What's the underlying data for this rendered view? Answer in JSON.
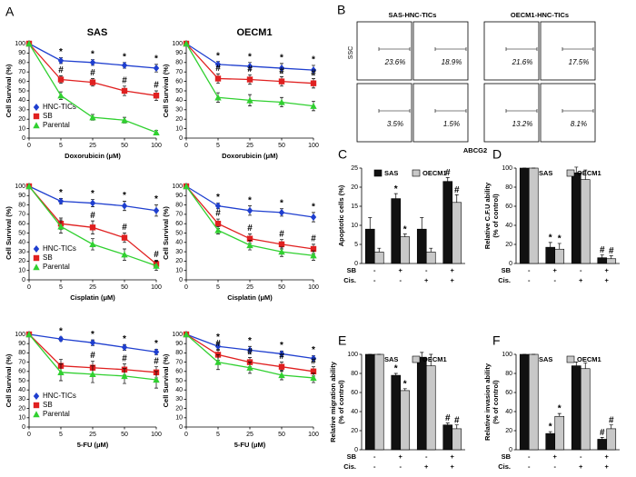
{
  "chart_data": [
    {
      "type": "line",
      "panel": "A",
      "title": "SAS",
      "xlabel": "Doxorubicin (μM)",
      "ylabel": "Cell Survival (%)",
      "categories": [
        "0",
        "5",
        "25",
        "50",
        "100"
      ],
      "ylim": [
        0,
        100
      ],
      "yticks": [
        0,
        10,
        20,
        30,
        40,
        50,
        60,
        70,
        80,
        90,
        100
      ],
      "legend": "lower left",
      "series": [
        {
          "name": "HNC-TICs",
          "color": "#1f3fcf",
          "marker": "diamond",
          "values": [
            100,
            82,
            80,
            77,
            74
          ],
          "errors": [
            0,
            3,
            3,
            3,
            4
          ],
          "marks": [
            null,
            "*",
            "*",
            "*",
            "*"
          ]
        },
        {
          "name": "SB",
          "color": "#e02020",
          "marker": "square",
          "values": [
            100,
            62,
            59,
            50,
            45
          ],
          "errors": [
            0,
            4,
            4,
            5,
            5
          ],
          "marks": [
            null,
            "#",
            "#",
            "#",
            "#"
          ]
        },
        {
          "name": "Parental",
          "color": "#30d030",
          "marker": "triangle",
          "values": [
            100,
            45,
            22,
            19,
            6
          ],
          "errors": [
            0,
            4,
            3,
            3,
            2
          ],
          "marks": [
            null,
            null,
            null,
            null,
            null
          ]
        }
      ]
    },
    {
      "type": "line",
      "title": "OECM1",
      "xlabel": "Doxorubicin (μM)",
      "ylabel": "Cell Survival (%)",
      "categories": [
        "0",
        "5",
        "25",
        "50",
        "100"
      ],
      "ylim": [
        0,
        100
      ],
      "yticks": [
        0,
        10,
        20,
        30,
        40,
        50,
        60,
        70,
        80,
        90,
        100
      ],
      "series": [
        {
          "color": "#1f3fcf",
          "marker": "diamond",
          "values": [
            100,
            78,
            76,
            74,
            72
          ],
          "errors": [
            0,
            3,
            4,
            5,
            5
          ],
          "marks": [
            null,
            "*",
            "*",
            "*",
            "*"
          ]
        },
        {
          "color": "#e02020",
          "marker": "square",
          "values": [
            100,
            63,
            62,
            60,
            58
          ],
          "errors": [
            0,
            5,
            5,
            5,
            5
          ],
          "marks": [
            null,
            "#",
            "#",
            "#",
            "#"
          ]
        },
        {
          "color": "#30d030",
          "marker": "triangle",
          "values": [
            100,
            43,
            40,
            38,
            34
          ],
          "errors": [
            0,
            5,
            6,
            5,
            5
          ],
          "marks": [
            null,
            null,
            null,
            null,
            null
          ]
        }
      ]
    },
    {
      "type": "line",
      "xlabel": "Cisplatin (μM)",
      "ylabel": "Cell Survival (%)",
      "categories": [
        "0",
        "5",
        "25",
        "50",
        "100"
      ],
      "ylim": [
        0,
        100
      ],
      "yticks": [
        0,
        10,
        20,
        30,
        40,
        50,
        60,
        70,
        80,
        90,
        100
      ],
      "legend": "lower left",
      "series": [
        {
          "name": "HNC-TICs",
          "color": "#1f3fcf",
          "marker": "diamond",
          "values": [
            100,
            84,
            82,
            79,
            74
          ],
          "errors": [
            0,
            3,
            4,
            5,
            6
          ],
          "marks": [
            null,
            "*",
            "*",
            "*",
            "*"
          ]
        },
        {
          "name": "SB",
          "color": "#e02020",
          "marker": "square",
          "values": [
            100,
            60,
            56,
            45,
            17
          ],
          "errors": [
            0,
            6,
            7,
            5,
            4
          ],
          "marks": [
            null,
            null,
            "#",
            "#",
            "#"
          ]
        },
        {
          "name": "Parental",
          "color": "#30d030",
          "marker": "triangle",
          "values": [
            100,
            57,
            38,
            27,
            15
          ],
          "errors": [
            0,
            7,
            6,
            6,
            5
          ],
          "marks": [
            null,
            null,
            null,
            null,
            null
          ]
        }
      ]
    },
    {
      "type": "line",
      "xlabel": "Cisplatin (μM)",
      "ylabel": "Cell Survival (%)",
      "categories": [
        "0",
        "5",
        "25",
        "50",
        "100"
      ],
      "ylim": [
        0,
        100
      ],
      "yticks": [
        0,
        10,
        20,
        30,
        40,
        50,
        60,
        70,
        80,
        90,
        100
      ],
      "series": [
        {
          "color": "#1f3fcf",
          "marker": "diamond",
          "values": [
            100,
            79,
            74,
            72,
            67
          ],
          "errors": [
            0,
            3,
            5,
            4,
            5
          ],
          "marks": [
            null,
            "*",
            "*",
            "*",
            "*"
          ]
        },
        {
          "color": "#e02020",
          "marker": "square",
          "values": [
            100,
            60,
            44,
            38,
            33
          ],
          "errors": [
            0,
            5,
            5,
            5,
            5
          ],
          "marks": [
            null,
            "#",
            "#",
            "#",
            "#"
          ]
        },
        {
          "color": "#30d030",
          "marker": "triangle",
          "values": [
            100,
            53,
            37,
            30,
            26
          ],
          "errors": [
            0,
            4,
            5,
            5,
            5
          ],
          "marks": [
            null,
            null,
            null,
            null,
            null
          ]
        }
      ]
    },
    {
      "type": "line",
      "xlabel": "5-FU (μM)",
      "ylabel": "Cell Survival (%)",
      "categories": [
        "0",
        "5",
        "25",
        "50",
        "100"
      ],
      "ylim": [
        0,
        100
      ],
      "yticks": [
        0,
        10,
        20,
        30,
        40,
        50,
        60,
        70,
        80,
        90,
        100
      ],
      "legend": "lower left",
      "series": [
        {
          "name": "HNC-TICs",
          "color": "#1f3fcf",
          "marker": "diamond",
          "values": [
            100,
            95,
            91,
            86,
            81
          ],
          "errors": [
            0,
            2,
            3,
            3,
            3
          ],
          "marks": [
            null,
            "*",
            "*",
            "*",
            "*"
          ]
        },
        {
          "name": "SB",
          "color": "#e02020",
          "marker": "square",
          "values": [
            100,
            66,
            64,
            62,
            59
          ],
          "errors": [
            0,
            7,
            7,
            6,
            6
          ],
          "marks": [
            null,
            null,
            "#",
            "#",
            "#"
          ]
        },
        {
          "name": "Parental",
          "color": "#30d030",
          "marker": "triangle",
          "values": [
            100,
            59,
            57,
            55,
            51
          ],
          "errors": [
            0,
            9,
            9,
            8,
            9
          ],
          "marks": [
            null,
            null,
            null,
            null,
            null
          ]
        }
      ]
    },
    {
      "type": "line",
      "xlabel": "5-FU (μM)",
      "ylabel": "Cell Survival (%)",
      "categories": [
        "0",
        "5",
        "25",
        "50",
        "100"
      ],
      "ylim": [
        0,
        100
      ],
      "yticks": [
        0,
        10,
        20,
        30,
        40,
        50,
        60,
        70,
        80,
        90,
        100
      ],
      "series": [
        {
          "color": "#1f3fcf",
          "marker": "diamond",
          "values": [
            100,
            87,
            83,
            79,
            74
          ],
          "errors": [
            0,
            4,
            4,
            3,
            3
          ],
          "marks": [
            null,
            "*",
            "*",
            "*",
            "*"
          ]
        },
        {
          "color": "#e02020",
          "marker": "square",
          "values": [
            100,
            78,
            70,
            65,
            60
          ],
          "errors": [
            0,
            6,
            5,
            5,
            5
          ],
          "marks": [
            null,
            "#",
            "#",
            "#",
            "#"
          ]
        },
        {
          "color": "#30d030",
          "marker": "triangle",
          "values": [
            100,
            70,
            64,
            56,
            53
          ],
          "errors": [
            0,
            8,
            6,
            5,
            5
          ],
          "marks": [
            null,
            null,
            null,
            null,
            null
          ]
        }
      ]
    },
    {
      "type": "flow",
      "panel": "B",
      "titles": [
        "SAS-HNC-TICs",
        "OECM1-HNC-TICs"
      ],
      "ylabel": "SSC",
      "xlabel": "ABCG2",
      "values": [
        23.6,
        18.9,
        21.6,
        17.5,
        3.5,
        1.5,
        13.2,
        8.1
      ],
      "value_labels": [
        "23.6%",
        "18.9%",
        "21.6%",
        "17.5%",
        "3.5%",
        "1.5%",
        "13.2%",
        "8.1%"
      ],
      "color": "#9b30d8",
      "control_color": "#30b030",
      "label_color": "#e02020"
    },
    {
      "type": "bar",
      "panel": "C",
      "ylabel": [
        "Apoptotic cells (%)"
      ],
      "ylim": [
        0,
        25
      ],
      "yticks": [
        0,
        5,
        10,
        15,
        20,
        25
      ],
      "conditions": [
        {
          "name": "SB",
          "values": [
            "-",
            "+",
            "-",
            "+"
          ]
        },
        {
          "name": "Cis.",
          "values": [
            "-",
            "-",
            "+",
            "+"
          ]
        }
      ],
      "series": [
        {
          "name": "SAS",
          "color": "#111111",
          "values": [
            9,
            17,
            9,
            21.5
          ],
          "errors": [
            3,
            1.3,
            3,
            1
          ],
          "marks": [
            null,
            "*",
            null,
            "#"
          ]
        },
        {
          "name": "OECM1",
          "color": "#c8c8c8",
          "values": [
            3,
            7,
            3,
            16
          ],
          "errors": [
            1,
            0.7,
            1,
            2
          ],
          "marks": [
            null,
            "*",
            null,
            "#"
          ]
        }
      ]
    },
    {
      "type": "bar",
      "panel": "D",
      "ylabel": [
        "Relative C.F.U ability",
        "(% of control)"
      ],
      "ylim": [
        0,
        100
      ],
      "yticks": [
        0,
        20,
        40,
        60,
        80,
        100
      ],
      "conditions": [
        {
          "name": "SB",
          "values": [
            "-",
            "+",
            "-",
            "+"
          ]
        },
        {
          "name": "Cis.",
          "values": [
            "-",
            "-",
            "+",
            "+"
          ]
        }
      ],
      "series": [
        {
          "name": "SAS",
          "color": "#111111",
          "values": [
            100,
            17,
            95,
            6
          ],
          "errors": [
            0,
            5,
            6,
            3
          ],
          "marks": [
            null,
            "*",
            null,
            "#"
          ]
        },
        {
          "name": "OECM1",
          "color": "#c8c8c8",
          "values": [
            100,
            15,
            88,
            5
          ],
          "errors": [
            0,
            6,
            10,
            3
          ],
          "marks": [
            null,
            "*",
            null,
            "#"
          ]
        }
      ]
    },
    {
      "type": "bar",
      "panel": "E",
      "ylabel": [
        "Relative migration ability",
        "(% of control)"
      ],
      "ylim": [
        0,
        100
      ],
      "yticks": [
        0,
        20,
        40,
        60,
        80,
        100
      ],
      "conditions": [
        {
          "name": "SB",
          "values": [
            "-",
            "+",
            "-",
            "+"
          ]
        },
        {
          "name": "Cis.",
          "values": [
            "-",
            "-",
            "+",
            "+"
          ]
        }
      ],
      "series": [
        {
          "name": "SAS",
          "color": "#111111",
          "values": [
            100,
            78,
            97,
            26
          ],
          "errors": [
            0,
            2,
            5,
            2
          ],
          "marks": [
            null,
            "*",
            null,
            "#"
          ]
        },
        {
          "name": "OECM1",
          "color": "#c8c8c8",
          "values": [
            100,
            62,
            88,
            22
          ],
          "errors": [
            0,
            2,
            12,
            4
          ],
          "marks": [
            null,
            "*",
            null,
            "#"
          ]
        }
      ]
    },
    {
      "type": "bar",
      "panel": "F",
      "ylabel": [
        "Relative invasion ability",
        "(% of control)"
      ],
      "ylim": [
        0,
        100
      ],
      "yticks": [
        0,
        20,
        40,
        60,
        80,
        100
      ],
      "conditions": [
        {
          "name": "SB",
          "values": [
            "-",
            "+",
            "-",
            "+"
          ]
        },
        {
          "name": "Cis.",
          "values": [
            "-",
            "-",
            "+",
            "+"
          ]
        }
      ],
      "series": [
        {
          "name": "SAS",
          "color": "#111111",
          "values": [
            100,
            17,
            88,
            11
          ],
          "errors": [
            0,
            2,
            4,
            2
          ],
          "marks": [
            null,
            "*",
            null,
            "#"
          ]
        },
        {
          "name": "OECM1",
          "color": "#c8c8c8",
          "values": [
            100,
            35,
            85,
            22
          ],
          "errors": [
            0,
            3,
            6,
            4
          ],
          "marks": [
            null,
            "*",
            null,
            "#"
          ]
        }
      ]
    }
  ]
}
